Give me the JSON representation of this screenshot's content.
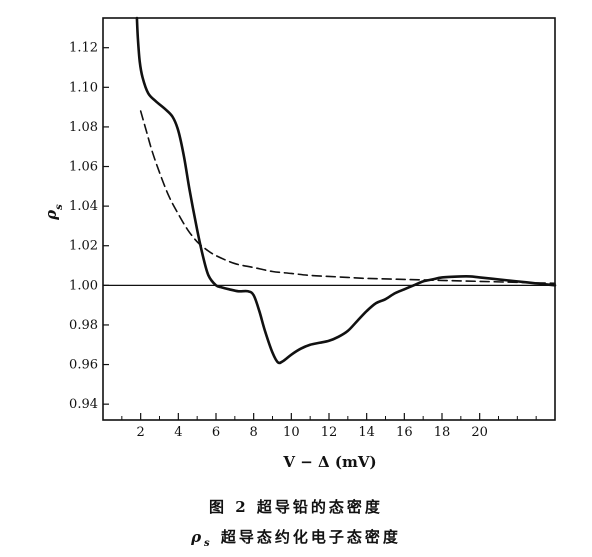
{
  "chart_data": {
    "type": "line",
    "xlabel": "V − Δ (mV)",
    "ylabel": "ρ",
    "ylabel_sub": "s",
    "xlim": [
      0,
      24
    ],
    "ylim": [
      0.932,
      1.135
    ],
    "x_ticks": [
      2,
      4,
      6,
      8,
      10,
      12,
      14,
      16,
      18,
      20
    ],
    "x_minor_ticks": [
      1,
      3,
      5,
      7,
      9,
      11,
      13,
      15,
      17,
      19,
      21,
      22,
      23
    ],
    "y_ticks": [
      0.94,
      0.96,
      0.98,
      1.0,
      1.02,
      1.04,
      1.06,
      1.08,
      1.1,
      1.12
    ],
    "y_tick_labels": [
      "0.94",
      "0.96",
      "0.98",
      "1.00",
      "1.02",
      "1.04",
      "1.06",
      "1.08",
      "1.10",
      "1.12"
    ],
    "reference_line": {
      "y": 1.0
    },
    "series": [
      {
        "style": "solid",
        "color": "#111111",
        "x": [
          1.8,
          1.85,
          1.95,
          2.1,
          2.4,
          2.8,
          3.3,
          3.7,
          4.0,
          4.3,
          4.6,
          5.0,
          5.3,
          5.6,
          6.0,
          6.3,
          6.7,
          7.2,
          7.7,
          8.0,
          8.3,
          8.6,
          9.0,
          9.3,
          9.6,
          10.0,
          10.5,
          11.0,
          11.5,
          12.0,
          12.5,
          13.0,
          13.5,
          14.0,
          14.5,
          15.0,
          15.5,
          16.0,
          16.5,
          17.0,
          17.5,
          18.0,
          19.0,
          19.5,
          20.0,
          21.0,
          22.0,
          23.0,
          24.0
        ],
        "y": [
          1.135,
          1.125,
          1.113,
          1.105,
          1.097,
          1.093,
          1.089,
          1.085,
          1.078,
          1.065,
          1.048,
          1.028,
          1.015,
          1.005,
          1.0,
          0.999,
          0.998,
          0.997,
          0.997,
          0.995,
          0.987,
          0.977,
          0.966,
          0.961,
          0.962,
          0.965,
          0.968,
          0.97,
          0.971,
          0.972,
          0.974,
          0.977,
          0.982,
          0.987,
          0.991,
          0.993,
          0.996,
          0.998,
          1.0,
          1.002,
          1.003,
          1.004,
          1.0045,
          1.0045,
          1.004,
          1.003,
          1.002,
          1.001,
          1.0
        ]
      },
      {
        "style": "dashed",
        "color": "#111111",
        "x": [
          2.0,
          2.3,
          2.6,
          3.0,
          3.5,
          4.0,
          4.5,
          5.0,
          5.5,
          6.0,
          7.0,
          8.0,
          9.0,
          10.0,
          11.0,
          12.0,
          13.0,
          14.0,
          16.0,
          18.0,
          20.0,
          22.0,
          24.0
        ],
        "y": [
          1.088,
          1.078,
          1.068,
          1.057,
          1.045,
          1.036,
          1.028,
          1.022,
          1.018,
          1.015,
          1.011,
          1.009,
          1.007,
          1.006,
          1.005,
          1.0045,
          1.004,
          1.0035,
          1.003,
          1.0025,
          1.002,
          1.0015,
          1.001
        ]
      }
    ]
  },
  "captions": {
    "line1": "图 2   超导铅的态密度",
    "line2": "ρ",
    "line2_sub": "s",
    "line2_text": " 超导态约化电子态密度"
  }
}
